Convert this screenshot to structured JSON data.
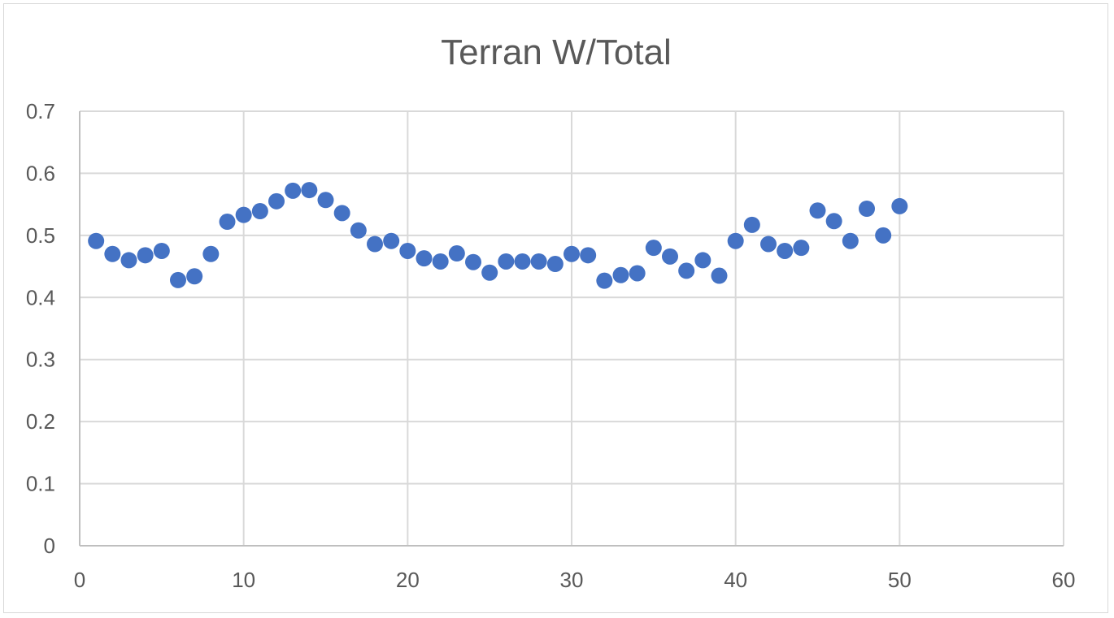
{
  "chart_data": {
    "type": "scatter",
    "title": "Terran W/Total",
    "xlabel": "",
    "ylabel": "",
    "xlim": [
      0,
      60
    ],
    "ylim": [
      0,
      0.7
    ],
    "x_ticks": [
      "0",
      "10",
      "20",
      "30",
      "40",
      "50",
      "60"
    ],
    "y_ticks": [
      "0",
      "0.1",
      "0.2",
      "0.3",
      "0.4",
      "0.5",
      "0.6",
      "0.7"
    ],
    "grid": true,
    "legend": "none",
    "marker_color": "#4472c4",
    "series": [
      {
        "x": [
          1,
          2,
          3,
          4,
          5,
          6,
          7,
          8,
          9,
          10,
          11,
          12,
          13,
          14,
          15,
          16,
          17,
          18,
          19,
          20,
          21,
          22,
          23,
          24,
          25,
          26,
          27,
          28,
          29,
          30,
          31,
          32,
          33,
          34,
          35,
          36,
          37,
          38,
          39,
          40,
          41,
          42,
          43,
          44,
          45,
          46,
          47,
          48,
          49,
          50
        ],
        "values": [
          0.491,
          0.47,
          0.46,
          0.468,
          0.475,
          0.428,
          0.434,
          0.47,
          0.522,
          0.533,
          0.539,
          0.555,
          0.572,
          0.573,
          0.557,
          0.536,
          0.508,
          0.486,
          0.491,
          0.475,
          0.463,
          0.458,
          0.471,
          0.457,
          0.44,
          0.458,
          0.458,
          0.458,
          0.454,
          0.47,
          0.468,
          0.427,
          0.436,
          0.439,
          0.48,
          0.466,
          0.443,
          0.46,
          0.435,
          0.491,
          0.517,
          0.486,
          0.475,
          0.48,
          0.54,
          0.523,
          0.491,
          0.543,
          0.5,
          0.547
        ]
      }
    ]
  }
}
